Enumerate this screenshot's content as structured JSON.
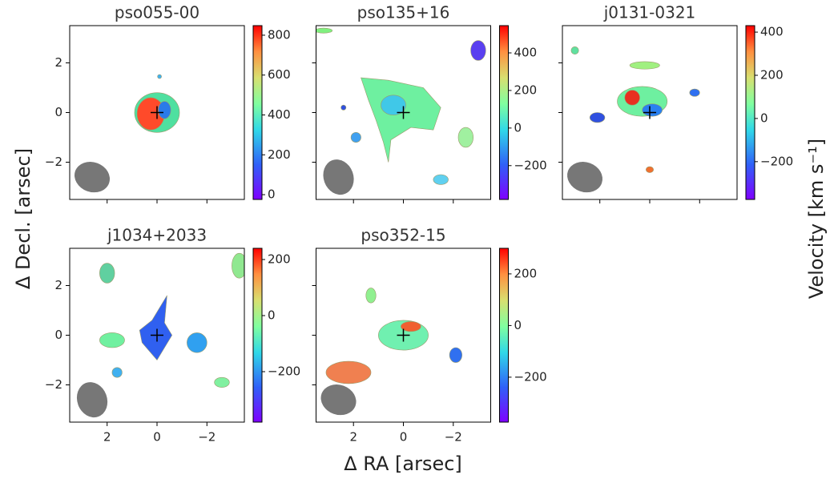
{
  "figure": {
    "xlabel": "Δ RA [arsec]",
    "ylabel": "Δ Decl.  [arsec]",
    "colorbar_label": "Velocity [km s⁻¹]"
  },
  "chart_data": [
    {
      "type": "image",
      "title": "pso055-00",
      "xlim": [
        3.5,
        -3.5
      ],
      "ylim": [
        -3.5,
        3.5
      ],
      "xticks": [
        2,
        0,
        {
          "value": -2,
          "label": "−2"
        }
      ],
      "yticks": [
        {
          "value": -2,
          "label": "−2"
        },
        0,
        2
      ],
      "clim": [
        -24,
        848
      ],
      "cticks": [
        0,
        200,
        400,
        600,
        800
      ],
      "show_xticklabels": false,
      "show_yticklabels": true
    },
    {
      "type": "image",
      "title": "pso135+16",
      "xlim": [
        3.5,
        -3.5
      ],
      "ylim": [
        -3.5,
        3.5
      ],
      "xticks": [
        2,
        0,
        {
          "value": -2,
          "label": "−2"
        }
      ],
      "yticks": [
        {
          "value": -2,
          "label": "−2"
        },
        0,
        2
      ],
      "clim": [
        -380,
        545
      ],
      "cticks": [
        {
          "value": -200,
          "label": "−200"
        },
        0,
        200,
        400
      ],
      "show_xticklabels": false,
      "show_yticklabels": false
    },
    {
      "type": "image",
      "title": "j0131-0321",
      "xlim": [
        3.5,
        -3.5
      ],
      "ylim": [
        -3.5,
        3.5
      ],
      "xticks": [
        2,
        0,
        {
          "value": -2,
          "label": "−2"
        }
      ],
      "yticks": [
        {
          "value": -2,
          "label": "−2"
        },
        0,
        2
      ],
      "clim": [
        -375,
        430
      ],
      "cticks": [
        {
          "value": -200,
          "label": "−200"
        },
        0,
        200,
        400
      ],
      "show_xticklabels": false,
      "show_yticklabels": false
    },
    {
      "type": "image",
      "title": "j1034+2033",
      "xlim": [
        3.5,
        -3.5
      ],
      "ylim": [
        -3.5,
        3.5
      ],
      "xticks": [
        2,
        0,
        {
          "value": -2,
          "label": "−2"
        }
      ],
      "yticks": [
        {
          "value": -2,
          "label": "−2"
        },
        0,
        2
      ],
      "clim": [
        -380,
        240
      ],
      "cticks": [
        {
          "value": -200,
          "label": "−200"
        },
        0,
        200
      ],
      "show_xticklabels": true,
      "show_yticklabels": true
    },
    {
      "type": "image",
      "title": "pso352-15",
      "xlim": [
        3.5,
        -3.5
      ],
      "ylim": [
        -3.5,
        3.5
      ],
      "xticks": [
        2,
        0,
        {
          "value": -2,
          "label": "−2"
        }
      ],
      "yticks": [
        {
          "value": -2,
          "label": "−2"
        },
        0,
        2
      ],
      "clim": [
        -374,
        299
      ],
      "cticks": [
        {
          "value": -200,
          "label": "−200"
        },
        0,
        200
      ],
      "show_xticklabels": true,
      "show_yticklabels": false
    }
  ]
}
